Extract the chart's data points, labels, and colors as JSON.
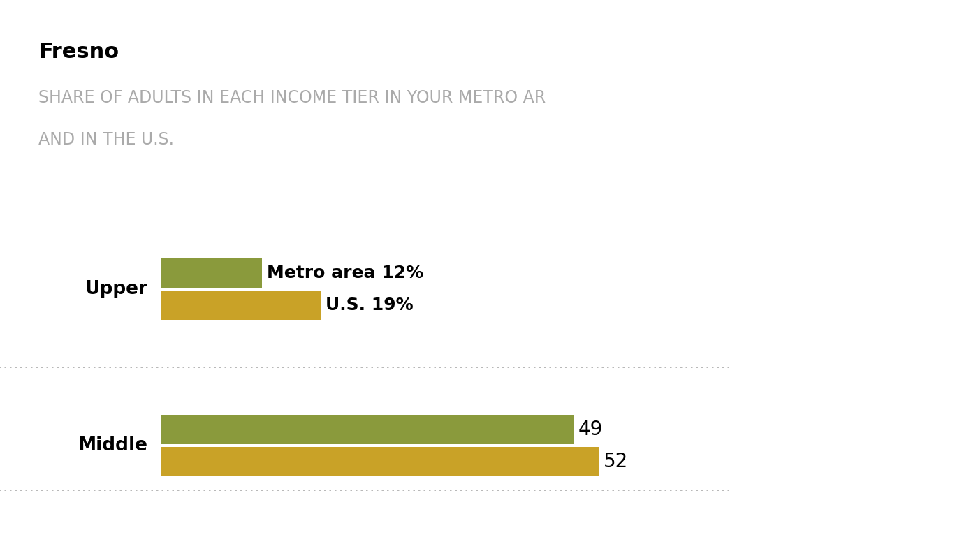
{
  "title": "Fresno",
  "subtitle_line1": "SHARE OF ADULTS IN EACH INCOME TIER IN YOUR METRO AR",
  "subtitle_line2": "AND IN THE U.S.",
  "categories": [
    "Upper",
    "Middle"
  ],
  "metro_values": [
    12,
    49
  ],
  "us_values": [
    19,
    52
  ],
  "metro_color": "#8a9a3c",
  "us_color": "#c9a227",
  "background_color": "#ffffff",
  "title_fontsize": 22,
  "subtitle_fontsize": 17,
  "label_fontsize": 19,
  "value_fontsize": 18,
  "bar_label_fontsize": 20,
  "xlim": [
    0,
    68
  ],
  "metro_label": "Metro area",
  "us_label": "U.S.",
  "dot_color": "#aaaaaa"
}
